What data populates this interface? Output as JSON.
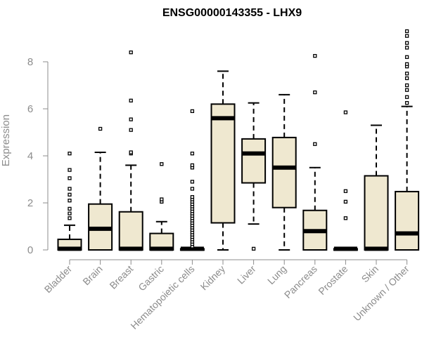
{
  "chart_data": {
    "type": "boxplot",
    "title": "ENSG00000143355 - LHX9",
    "xlabel": "",
    "ylabel": "Expression",
    "ylim": [
      0,
      9.4
    ],
    "yticks": [
      0,
      2,
      4,
      6,
      8
    ],
    "box_fill": "#efe8d0",
    "categories": [
      "Bladder",
      "Brain",
      "Breast",
      "Gastric",
      "Hematopoietic cells",
      "Kidney",
      "Liver",
      "Lung",
      "Pancreas",
      "Prostate",
      "Skin",
      "Unknown / Other"
    ],
    "boxes": [
      {
        "min": 0,
        "q1": 0,
        "median": 0.05,
        "q3": 0.45,
        "max": 1.05,
        "outliers": [
          1.35,
          1.55,
          1.75,
          2.1,
          2.35,
          2.6,
          3.05,
          3.4,
          4.1
        ]
      },
      {
        "min": 0,
        "q1": 0,
        "median": 0.9,
        "q3": 1.95,
        "max": 4.15,
        "outliers": [
          5.15
        ]
      },
      {
        "min": 0,
        "q1": 0,
        "median": 0.05,
        "q3": 1.62,
        "max": 3.6,
        "outliers": [
          4.1,
          4.15,
          5.1,
          5.55,
          6.35,
          8.4
        ]
      },
      {
        "min": 0,
        "q1": 0,
        "median": 0.05,
        "q3": 0.7,
        "max": 1.2,
        "outliers": [
          2.05,
          2.15,
          3.65
        ]
      },
      {
        "min": 0,
        "q1": 0,
        "median": 0.05,
        "q3": 0.05,
        "max": 0.05,
        "outliers": [
          0.15,
          0.25,
          0.35,
          0.45,
          0.55,
          0.65,
          0.75,
          0.85,
          0.95,
          1.05,
          1.15,
          1.25,
          1.35,
          1.45,
          1.55,
          1.65,
          1.75,
          1.85,
          1.95,
          2.05,
          2.15,
          2.25,
          2.6,
          2.9,
          3.5,
          3.6,
          4.1,
          5.9
        ]
      },
      {
        "min": 0,
        "q1": 1.15,
        "median": 5.6,
        "q3": 6.2,
        "max": 7.6,
        "outliers": []
      },
      {
        "min": 1.1,
        "q1": 2.85,
        "median": 4.1,
        "q3": 4.72,
        "max": 6.25,
        "outliers": [
          0.05
        ]
      },
      {
        "min": 0,
        "q1": 1.8,
        "median": 3.5,
        "q3": 4.78,
        "max": 6.6,
        "outliers": []
      },
      {
        "min": 0,
        "q1": 0,
        "median": 0.8,
        "q3": 1.68,
        "max": 3.5,
        "outliers": [
          4.5,
          6.7,
          8.25
        ]
      },
      {
        "min": 0,
        "q1": 0,
        "median": 0.05,
        "q3": 0.05,
        "max": 0.05,
        "outliers": [
          1.35,
          2.05,
          2.5,
          5.85
        ]
      },
      {
        "min": 0,
        "q1": 0,
        "median": 0.05,
        "q3": 3.15,
        "max": 5.3,
        "outliers": []
      },
      {
        "min": 0,
        "q1": 0,
        "median": 0.7,
        "q3": 2.48,
        "max": 6.1,
        "outliers": [
          6.25,
          6.5,
          6.8,
          7.0,
          7.3,
          7.5,
          7.8,
          7.9,
          8.2,
          8.6,
          8.8,
          9.1,
          9.3
        ]
      }
    ]
  }
}
